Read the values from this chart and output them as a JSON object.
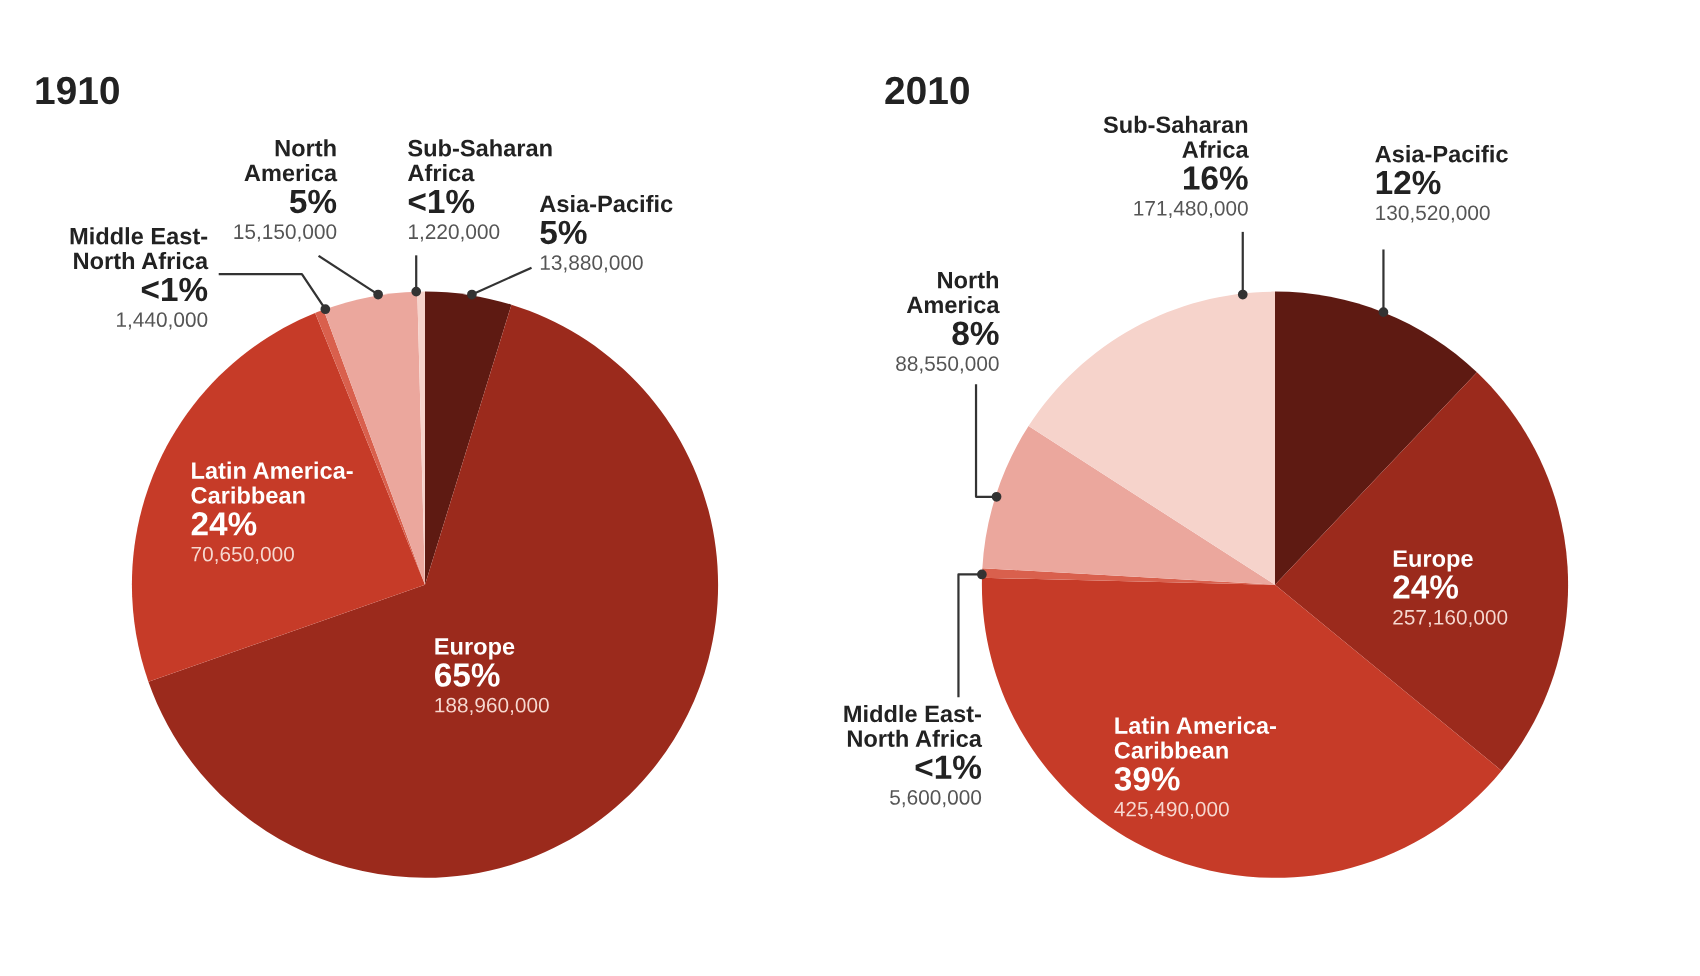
{
  "chart_data": [
    {
      "type": "pie",
      "title": "1910",
      "categories": [
        "Asia-Pacific",
        "Europe",
        "Latin America-\nCaribbean",
        "Middle East-\nNorth Africa",
        "North\nAmerica",
        "Sub-Saharan\nAfrica"
      ],
      "values": [
        13880000,
        188960000,
        70650000,
        1440000,
        15150000,
        1220000
      ],
      "colors": [
        "#5e1a12",
        "#9b2a1c",
        "#c63b28",
        "#d9604d",
        "#eba79d",
        "#f6d3cb"
      ],
      "value_labels": [
        "5%\n13,880,000",
        "65%\n188,960,000",
        "24%\n70,650,000",
        "<1%\n1,440,000",
        "5%\n15,150,000",
        "<1%\n1,220,000"
      ]
    },
    {
      "type": "pie",
      "title": "2010",
      "categories": [
        "Asia-Pacific",
        "Europe",
        "Latin America-\nCaribbean",
        "Middle East-\nNorth Africa",
        "North\nAmerica",
        "Sub-Saharan\nAfrica"
      ],
      "values": [
        130520000,
        257160000,
        425490000,
        5600000,
        88550000,
        171480000
      ],
      "colors": [
        "#5e1a12",
        "#9b2a1c",
        "#c63b28",
        "#d9604d",
        "#eba79d",
        "#f6d3cb"
      ],
      "value_labels": [
        "12%\n130,520,000",
        "24%\n257,160,000",
        "39%\n425,490,000",
        "<1%\n5,600,000",
        "8%\n88,550,000",
        "16%\n171,480,000"
      ]
    }
  ]
}
